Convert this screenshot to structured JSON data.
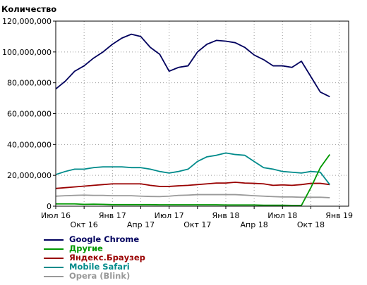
{
  "chart_data": {
    "type": "line",
    "ylabel": "Количество",
    "ylim": [
      0,
      120000000
    ],
    "yticks": [
      0,
      20000000,
      40000000,
      60000000,
      80000000,
      100000000,
      120000000
    ],
    "ytick_labels": [
      "0",
      "20,000,000",
      "40,000,000",
      "60,000,000",
      "80,000,000",
      "100,000,000",
      "120,000,000"
    ],
    "xlim": [
      0,
      31
    ],
    "xticks": [
      {
        "label": "Июл 16",
        "x": 0,
        "row": 0
      },
      {
        "label": "Окт 16",
        "x": 3,
        "row": 1
      },
      {
        "label": "Янв 17",
        "x": 6,
        "row": 0
      },
      {
        "label": "Апр 17",
        "x": 9,
        "row": 1
      },
      {
        "label": "Июл 17",
        "x": 12,
        "row": 0
      },
      {
        "label": "Окт 17",
        "x": 15,
        "row": 1
      },
      {
        "label": "Янв 18",
        "x": 18,
        "row": 0
      },
      {
        "label": "Апр 18",
        "x": 21,
        "row": 1
      },
      {
        "label": "Июл 18",
        "x": 24,
        "row": 0
      },
      {
        "label": "Окт 18",
        "x": 27,
        "row": 1
      },
      {
        "label": "Янв 19",
        "x": 30,
        "row": 0
      }
    ],
    "grid": true,
    "legend_position": "bottom-left",
    "series": [
      {
        "name": "Google Chrome",
        "color": "#00005e",
        "values": [
          76000000,
          81000000,
          87500000,
          91000000,
          96000000,
          100000000,
          105000000,
          109000000,
          111500000,
          110000000,
          103000000,
          98500000,
          87500000,
          90000000,
          91000000,
          100000000,
          105000000,
          107500000,
          107000000,
          106000000,
          103000000,
          98000000,
          95000000,
          91000000,
          91000000,
          90000000,
          94000000,
          84000000,
          74000000,
          71000000
        ]
      },
      {
        "name": "Другие",
        "color": "#009900",
        "values": [
          1500000,
          1500000,
          1500000,
          1200000,
          1300000,
          1200000,
          1000000,
          1000000,
          1000000,
          1000000,
          1000000,
          900000,
          900000,
          900000,
          900000,
          900000,
          900000,
          900000,
          800000,
          800000,
          800000,
          800000,
          600000,
          600000,
          600000,
          500000,
          500000,
          12000000,
          25000000,
          33500000
        ]
      },
      {
        "name": "Яндекс.Браузер",
        "color": "#990000",
        "values": [
          11500000,
          12000000,
          12500000,
          13000000,
          13500000,
          14000000,
          14500000,
          14500000,
          14500000,
          14500000,
          13500000,
          12800000,
          12800000,
          13200000,
          13500000,
          14000000,
          14500000,
          15000000,
          15000000,
          15500000,
          15000000,
          14800000,
          14500000,
          13500000,
          13800000,
          13500000,
          14000000,
          14800000,
          14800000,
          14000000
        ]
      },
      {
        "name": "Mobile Safari",
        "color": "#008b8b",
        "values": [
          20500000,
          22500000,
          24000000,
          24000000,
          25000000,
          25500000,
          25500000,
          25500000,
          25000000,
          25000000,
          24000000,
          22500000,
          21500000,
          22500000,
          24000000,
          29000000,
          32000000,
          33000000,
          34500000,
          33500000,
          33000000,
          29000000,
          25000000,
          24000000,
          22500000,
          22000000,
          21500000,
          22500000,
          22000000,
          14000000
        ]
      },
      {
        "name": "Opera (Blink)",
        "color": "#999999",
        "values": [
          6500000,
          6800000,
          7000000,
          7200000,
          7000000,
          7000000,
          6800000,
          6800000,
          6800000,
          6500000,
          6300000,
          6200000,
          6500000,
          7000000,
          7200000,
          7500000,
          7500000,
          7500000,
          7500000,
          7500000,
          7200000,
          6800000,
          6500000,
          6200000,
          6000000,
          6000000,
          5800000,
          5800000,
          5800000,
          5500000
        ]
      }
    ]
  }
}
